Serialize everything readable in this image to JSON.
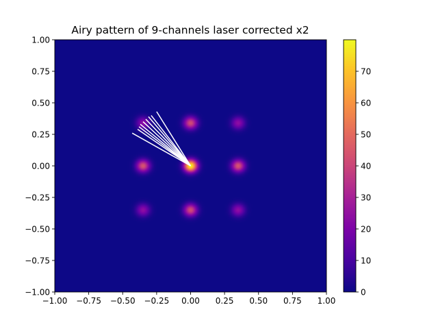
{
  "chart_data": {
    "type": "heatmap",
    "title": "Airy pattern of 9-channels laser corrected x2",
    "xlabel": "",
    "ylabel": "",
    "xlim": [
      -1.0,
      1.0
    ],
    "ylim": [
      -1.0,
      1.0
    ],
    "x_ticks": [
      "−1.00",
      "−0.75",
      "−0.50",
      "−0.25",
      "0.00",
      "0.25",
      "0.50",
      "0.75",
      "1.00"
    ],
    "y_ticks": [
      "−1.00",
      "−0.75",
      "−0.50",
      "−0.25",
      "0.00",
      "0.25",
      "0.50",
      "0.75",
      "1.00"
    ],
    "x_tick_values": [
      -1.0,
      -0.75,
      -0.5,
      -0.25,
      0.0,
      0.25,
      0.5,
      0.75,
      1.0
    ],
    "y_tick_values": [
      -1.0,
      -0.75,
      -0.5,
      -0.25,
      0.0,
      0.25,
      0.5,
      0.75,
      1.0
    ],
    "colormap": "plasma",
    "colorbar": {
      "vmin": 0,
      "vmax": 80,
      "ticks": [
        "0",
        "10",
        "20",
        "30",
        "40",
        "50",
        "60",
        "70"
      ],
      "tick_values": [
        0,
        10,
        20,
        30,
        40,
        50,
        60,
        70
      ]
    },
    "peaks": [
      {
        "x": 0.0,
        "y": 0.0,
        "value": 80
      },
      {
        "x": -0.35,
        "y": 0.0,
        "value": 44
      },
      {
        "x": 0.35,
        "y": 0.0,
        "value": 44
      },
      {
        "x": 0.0,
        "y": 0.34,
        "value": 42
      },
      {
        "x": 0.0,
        "y": -0.35,
        "value": 42
      },
      {
        "x": -0.35,
        "y": 0.34,
        "value": 24
      },
      {
        "x": 0.35,
        "y": 0.34,
        "value": 24
      },
      {
        "x": -0.35,
        "y": -0.35,
        "value": 24
      },
      {
        "x": 0.35,
        "y": -0.35,
        "value": 24
      }
    ],
    "rays": {
      "color": "#ffffff",
      "origin": [
        0.0,
        0.0
      ],
      "endpoints": [
        [
          -0.43,
          0.26
        ],
        [
          -0.39,
          0.29
        ],
        [
          -0.38,
          0.31
        ],
        [
          -0.37,
          0.33
        ],
        [
          -0.35,
          0.35
        ],
        [
          -0.33,
          0.37
        ],
        [
          -0.31,
          0.39
        ],
        [
          -0.29,
          0.4
        ],
        [
          -0.25,
          0.43
        ]
      ]
    }
  }
}
